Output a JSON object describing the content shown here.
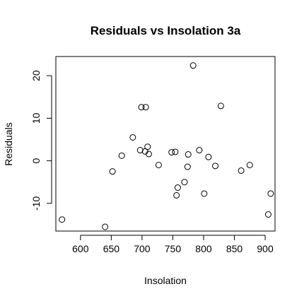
{
  "chart_data": {
    "type": "scatter",
    "title": "Residuals vs Insolation 3a",
    "xlabel": "Insolation",
    "ylabel": "Residuals",
    "xlim": [
      560,
      916
    ],
    "ylim": [
      -16.5,
      24.5
    ],
    "xticks": [
      600,
      650,
      700,
      750,
      800,
      850,
      900
    ],
    "yticks": [
      -10,
      0,
      10,
      20
    ],
    "grid": false,
    "points": [
      {
        "x": 570,
        "y": -13.8
      },
      {
        "x": 640,
        "y": -15.5
      },
      {
        "x": 652,
        "y": -2.5
      },
      {
        "x": 667,
        "y": 1.2
      },
      {
        "x": 685,
        "y": 5.5
      },
      {
        "x": 697,
        "y": 2.5
      },
      {
        "x": 699,
        "y": 12.6
      },
      {
        "x": 705,
        "y": 2.2
      },
      {
        "x": 706,
        "y": 12.6
      },
      {
        "x": 709,
        "y": 3.3
      },
      {
        "x": 711,
        "y": 1.6
      },
      {
        "x": 727,
        "y": -1.0
      },
      {
        "x": 748,
        "y": 2.0
      },
      {
        "x": 754,
        "y": 2.1
      },
      {
        "x": 756,
        "y": -8.1
      },
      {
        "x": 758,
        "y": -6.3
      },
      {
        "x": 769,
        "y": -5.0
      },
      {
        "x": 774,
        "y": -1.4
      },
      {
        "x": 775,
        "y": 1.5
      },
      {
        "x": 783,
        "y": 22.4
      },
      {
        "x": 793,
        "y": 2.5
      },
      {
        "x": 801,
        "y": -7.7
      },
      {
        "x": 808,
        "y": 0.9
      },
      {
        "x": 819,
        "y": -1.2
      },
      {
        "x": 828,
        "y": 12.9
      },
      {
        "x": 861,
        "y": -2.3
      },
      {
        "x": 875,
        "y": -1.0
      },
      {
        "x": 905,
        "y": -12.6
      },
      {
        "x": 909,
        "y": -7.7
      }
    ]
  }
}
